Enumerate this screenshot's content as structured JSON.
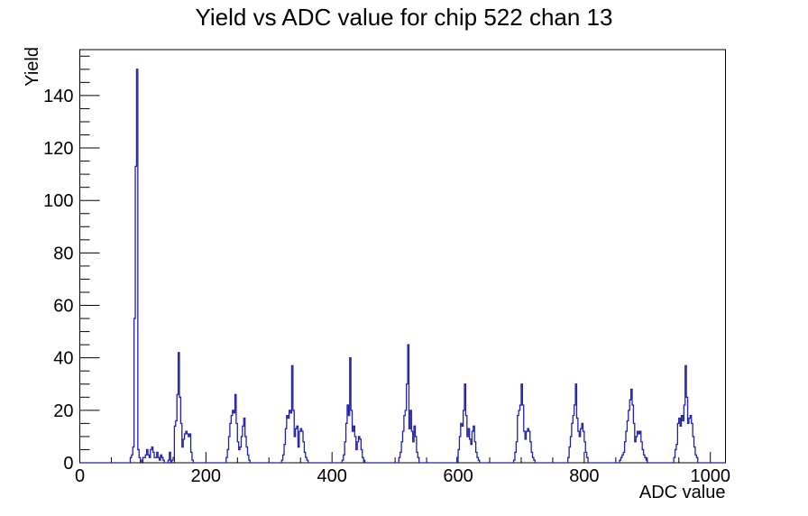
{
  "chart_data": {
    "type": "histogram-line",
    "title": "Yield vs ADC value for chip 522 chan 13",
    "xlabel": "ADC value",
    "ylabel": "Yield",
    "xlim": [
      0,
      1024
    ],
    "ylim": [
      0,
      157.5
    ],
    "bin_width": 2,
    "grid": false,
    "legend": "none",
    "line_color": "#2121a8",
    "axis_color": "#000000",
    "x_major_ticks": [
      0,
      200,
      400,
      600,
      800,
      1000
    ],
    "x_minor_step": 50,
    "y_major_ticks": [
      0,
      20,
      40,
      60,
      80,
      100,
      120,
      140
    ],
    "y_minor_step": 5,
    "bins": [
      [
        80,
        2
      ],
      [
        82,
        3
      ],
      [
        84,
        6
      ],
      [
        86,
        55
      ],
      [
        88,
        113
      ],
      [
        90,
        150
      ],
      [
        92,
        5
      ],
      [
        94,
        2
      ],
      [
        98,
        1
      ],
      [
        100,
        2
      ],
      [
        102,
        2
      ],
      [
        104,
        3
      ],
      [
        106,
        5
      ],
      [
        108,
        3
      ],
      [
        110,
        2
      ],
      [
        112,
        5
      ],
      [
        114,
        6
      ],
      [
        116,
        4
      ],
      [
        118,
        2
      ],
      [
        120,
        2
      ],
      [
        122,
        4
      ],
      [
        124,
        2
      ],
      [
        126,
        1
      ],
      [
        128,
        3
      ],
      [
        130,
        2
      ],
      [
        132,
        1
      ],
      [
        140,
        1
      ],
      [
        142,
        4
      ],
      [
        146,
        1
      ],
      [
        148,
        2
      ],
      [
        150,
        14
      ],
      [
        152,
        16
      ],
      [
        154,
        26
      ],
      [
        156,
        42
      ],
      [
        158,
        25
      ],
      [
        160,
        15
      ],
      [
        162,
        6
      ],
      [
        164,
        9
      ],
      [
        166,
        11
      ],
      [
        168,
        12
      ],
      [
        170,
        11
      ],
      [
        172,
        10
      ],
      [
        174,
        11
      ],
      [
        176,
        4
      ],
      [
        178,
        1
      ],
      [
        232,
        2
      ],
      [
        234,
        5
      ],
      [
        236,
        10
      ],
      [
        238,
        15
      ],
      [
        240,
        18
      ],
      [
        242,
        20
      ],
      [
        244,
        19
      ],
      [
        246,
        26
      ],
      [
        248,
        15
      ],
      [
        250,
        8
      ],
      [
        252,
        5
      ],
      [
        254,
        6
      ],
      [
        256,
        10
      ],
      [
        258,
        14
      ],
      [
        260,
        17
      ],
      [
        262,
        10
      ],
      [
        264,
        6
      ],
      [
        266,
        3
      ],
      [
        268,
        1
      ],
      [
        320,
        1
      ],
      [
        322,
        3
      ],
      [
        324,
        7
      ],
      [
        326,
        13
      ],
      [
        328,
        18
      ],
      [
        330,
        17
      ],
      [
        332,
        20
      ],
      [
        334,
        19
      ],
      [
        336,
        37
      ],
      [
        338,
        20
      ],
      [
        340,
        10
      ],
      [
        342,
        13
      ],
      [
        344,
        14
      ],
      [
        346,
        6
      ],
      [
        348,
        12
      ],
      [
        350,
        13
      ],
      [
        352,
        12
      ],
      [
        354,
        8
      ],
      [
        356,
        4
      ],
      [
        358,
        2
      ],
      [
        360,
        1
      ],
      [
        416,
        1
      ],
      [
        418,
        3
      ],
      [
        420,
        8
      ],
      [
        422,
        15
      ],
      [
        424,
        22
      ],
      [
        426,
        18
      ],
      [
        428,
        40
      ],
      [
        430,
        20
      ],
      [
        432,
        12
      ],
      [
        434,
        14
      ],
      [
        436,
        10
      ],
      [
        438,
        5
      ],
      [
        440,
        8
      ],
      [
        442,
        10
      ],
      [
        444,
        9
      ],
      [
        446,
        5
      ],
      [
        448,
        2
      ],
      [
        450,
        1
      ],
      [
        506,
        2
      ],
      [
        508,
        4
      ],
      [
        510,
        8
      ],
      [
        512,
        12
      ],
      [
        514,
        18
      ],
      [
        516,
        20
      ],
      [
        518,
        30
      ],
      [
        520,
        45
      ],
      [
        522,
        13
      ],
      [
        524,
        20
      ],
      [
        526,
        12
      ],
      [
        528,
        8
      ],
      [
        530,
        14
      ],
      [
        532,
        10
      ],
      [
        534,
        4
      ],
      [
        536,
        2
      ],
      [
        598,
        2
      ],
      [
        600,
        5
      ],
      [
        602,
        10
      ],
      [
        604,
        15
      ],
      [
        606,
        14
      ],
      [
        608,
        20
      ],
      [
        610,
        30
      ],
      [
        612,
        18
      ],
      [
        614,
        10
      ],
      [
        616,
        13
      ],
      [
        618,
        9
      ],
      [
        620,
        7
      ],
      [
        622,
        12
      ],
      [
        624,
        14
      ],
      [
        626,
        8
      ],
      [
        628,
        4
      ],
      [
        630,
        2
      ],
      [
        632,
        1
      ],
      [
        688,
        1
      ],
      [
        690,
        4
      ],
      [
        692,
        8
      ],
      [
        694,
        18
      ],
      [
        696,
        20
      ],
      [
        698,
        22
      ],
      [
        700,
        30
      ],
      [
        702,
        22
      ],
      [
        704,
        12
      ],
      [
        706,
        9
      ],
      [
        708,
        12
      ],
      [
        710,
        13
      ],
      [
        712,
        12
      ],
      [
        714,
        8
      ],
      [
        716,
        4
      ],
      [
        718,
        2
      ],
      [
        720,
        1
      ],
      [
        774,
        2
      ],
      [
        776,
        6
      ],
      [
        778,
        10
      ],
      [
        780,
        15
      ],
      [
        782,
        18
      ],
      [
        784,
        22
      ],
      [
        786,
        30
      ],
      [
        788,
        17
      ],
      [
        790,
        12
      ],
      [
        792,
        10
      ],
      [
        794,
        13
      ],
      [
        796,
        15
      ],
      [
        798,
        12
      ],
      [
        800,
        8
      ],
      [
        802,
        4
      ],
      [
        804,
        2
      ],
      [
        856,
        1
      ],
      [
        858,
        2
      ],
      [
        860,
        3
      ],
      [
        862,
        4
      ],
      [
        864,
        8
      ],
      [
        866,
        12
      ],
      [
        868,
        16
      ],
      [
        870,
        20
      ],
      [
        872,
        24
      ],
      [
        874,
        28
      ],
      [
        876,
        22
      ],
      [
        878,
        15
      ],
      [
        880,
        8
      ],
      [
        882,
        10
      ],
      [
        884,
        12
      ],
      [
        886,
        11
      ],
      [
        888,
        12
      ],
      [
        890,
        8
      ],
      [
        892,
        5
      ],
      [
        894,
        3
      ],
      [
        896,
        2
      ],
      [
        898,
        1
      ],
      [
        942,
        2
      ],
      [
        944,
        5
      ],
      [
        946,
        7
      ],
      [
        948,
        15
      ],
      [
        950,
        17
      ],
      [
        952,
        14
      ],
      [
        954,
        18
      ],
      [
        956,
        16
      ],
      [
        958,
        22
      ],
      [
        960,
        37
      ],
      [
        962,
        25
      ],
      [
        964,
        15
      ],
      [
        966,
        17
      ],
      [
        968,
        18
      ],
      [
        970,
        15
      ],
      [
        972,
        10
      ],
      [
        974,
        6
      ],
      [
        976,
        3
      ],
      [
        978,
        2
      ]
    ]
  }
}
